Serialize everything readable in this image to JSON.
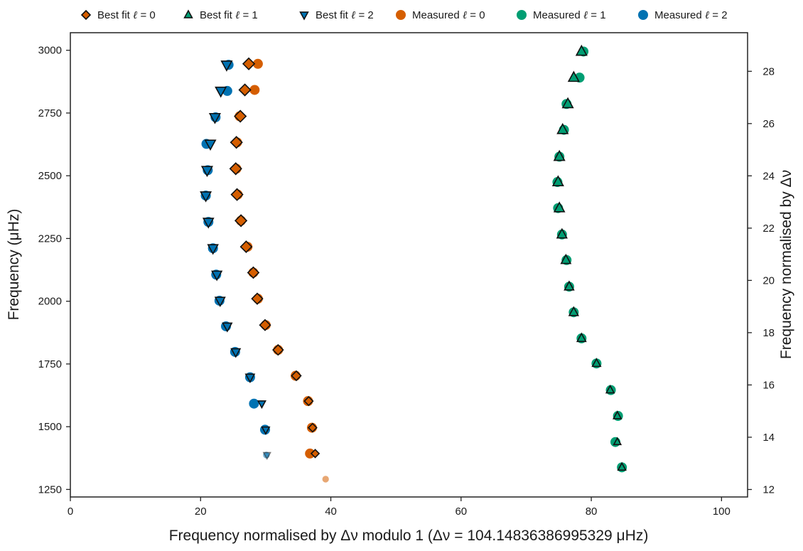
{
  "chart_data": {
    "type": "scatter",
    "xlabel": "Frequency normalised by Δν modulo 1 (Δν = 104.14836386995329 μHz)",
    "ylabel": "Frequency (μHz)",
    "ylabel_right": "Frequency normalised by Δν",
    "xlim": [
      0,
      104
    ],
    "ylim": [
      1220,
      3070
    ],
    "ylim_right": [
      11.714,
      29.477
    ],
    "x_ticks": [
      "0",
      "20",
      "40",
      "60",
      "80",
      "100"
    ],
    "y_ticks": [
      "1250",
      "1500",
      "1750",
      "2000",
      "2250",
      "2500",
      "2750",
      "3000"
    ],
    "y_right_ticks": [
      "12",
      "14",
      "16",
      "18",
      "20",
      "22",
      "24",
      "26",
      "28"
    ],
    "grid": false,
    "legend_position": "top",
    "legend": [
      {
        "prefix": "Best fit ",
        "sym": "ℓ",
        "suffix": " = 0",
        "marker": "diamond",
        "color": "#d55e00"
      },
      {
        "prefix": "Best fit ",
        "sym": "ℓ",
        "suffix": " = 1",
        "marker": "triangle-up",
        "color": "#009e73"
      },
      {
        "prefix": "Best fit ",
        "sym": "ℓ",
        "suffix": " = 2",
        "marker": "triangle-down",
        "color": "#0072b2"
      },
      {
        "prefix": "Measured ",
        "sym": "ℓ",
        "suffix": " = 0",
        "marker": "circle",
        "color": "#d55e00"
      },
      {
        "prefix": "Measured ",
        "sym": "ℓ",
        "suffix": " = 1",
        "marker": "circle",
        "color": "#009e73"
      },
      {
        "prefix": "Measured ",
        "sym": "ℓ",
        "suffix": " = 2",
        "marker": "circle",
        "color": "#0072b2"
      }
    ],
    "series": [
      {
        "name": "Measured ℓ = 0",
        "marker": "circle",
        "color": "#d55e00",
        "points": [
          [
            39.2,
            1291,
            0.15
          ],
          [
            36.8,
            1393,
            1
          ],
          [
            37.1,
            1496,
            1
          ],
          [
            36.5,
            1602,
            1
          ],
          [
            34.6,
            1703,
            1
          ],
          [
            31.9,
            1806,
            1
          ],
          [
            30.0,
            1905,
            1
          ],
          [
            28.8,
            2010,
            1
          ],
          [
            28.1,
            2114,
            1
          ],
          [
            27.2,
            2217,
            1
          ],
          [
            26.2,
            2321,
            1
          ],
          [
            25.7,
            2425,
            1
          ],
          [
            25.5,
            2528,
            1
          ],
          [
            25.6,
            2633,
            1
          ],
          [
            26.0,
            2737,
            1
          ],
          [
            28.3,
            2842,
            1
          ],
          [
            28.8,
            2946,
            1
          ]
        ]
      },
      {
        "name": "Measured ℓ = 1",
        "marker": "circle",
        "color": "#009e73",
        "points": [
          [
            84.7,
            1338,
            1
          ],
          [
            83.7,
            1439,
            1
          ],
          [
            84.1,
            1543,
            1
          ],
          [
            83.0,
            1646,
            1
          ],
          [
            80.8,
            1752,
            1
          ],
          [
            78.5,
            1852,
            1
          ],
          [
            77.3,
            1956,
            1
          ],
          [
            76.6,
            2058,
            1
          ],
          [
            76.2,
            2164,
            1
          ],
          [
            75.5,
            2266,
            1
          ],
          [
            74.9,
            2371,
            1
          ],
          [
            74.8,
            2475,
            1
          ],
          [
            75.1,
            2576,
            1
          ],
          [
            75.8,
            2683,
            1
          ],
          [
            76.2,
            2786,
            1
          ],
          [
            78.2,
            2891,
            1
          ],
          [
            78.8,
            2995,
            1
          ]
        ]
      },
      {
        "name": "Measured ℓ = 2",
        "marker": "circle",
        "color": "#0072b2",
        "points": [
          [
            30.1,
            1387,
            0.15
          ],
          [
            29.9,
            1488,
            1
          ],
          [
            28.2,
            1592,
            1
          ],
          [
            27.6,
            1697,
            1
          ],
          [
            25.3,
            1798,
            1
          ],
          [
            23.9,
            1900,
            1
          ],
          [
            22.9,
            2002,
            1
          ],
          [
            22.4,
            2106,
            1
          ],
          [
            21.9,
            2211,
            1
          ],
          [
            21.2,
            2316,
            1
          ],
          [
            20.8,
            2421,
            1
          ],
          [
            21.1,
            2522,
            1
          ],
          [
            20.9,
            2627,
            1
          ],
          [
            22.3,
            2733,
            1
          ],
          [
            24.1,
            2838,
            1
          ],
          [
            24.3,
            2942,
            1
          ]
        ]
      },
      {
        "name": "Best fit ℓ = 0",
        "marker": "diamond",
        "color": "#d55e00",
        "points": [
          [
            37.6,
            1393,
            0.2
          ],
          [
            37.2,
            1496,
            0.25
          ],
          [
            36.6,
            1602,
            0.3
          ],
          [
            34.7,
            1703,
            0.45
          ],
          [
            31.9,
            1806,
            0.65
          ],
          [
            29.9,
            1905,
            0.75
          ],
          [
            28.7,
            2010,
            0.8
          ],
          [
            28.1,
            2114,
            0.85
          ],
          [
            27.0,
            2217,
            0.9
          ],
          [
            26.2,
            2321,
            1
          ],
          [
            25.6,
            2425,
            1
          ],
          [
            25.4,
            2528,
            1
          ],
          [
            25.5,
            2633,
            1
          ],
          [
            26.1,
            2737,
            1
          ],
          [
            26.8,
            2842,
            1
          ],
          [
            27.4,
            2946,
            1
          ]
        ]
      },
      {
        "name": "Best fit ℓ = 1",
        "marker": "triangle-up",
        "color": "#009e73",
        "points": [
          [
            84.7,
            1338,
            0.3
          ],
          [
            84.0,
            1439,
            0.2
          ],
          [
            84.0,
            1543,
            0.3
          ],
          [
            82.9,
            1646,
            0.3
          ],
          [
            80.8,
            1752,
            0.4
          ],
          [
            78.5,
            1852,
            0.5
          ],
          [
            77.3,
            1956,
            0.6
          ],
          [
            76.6,
            2058,
            0.65
          ],
          [
            76.1,
            2164,
            0.7
          ],
          [
            75.5,
            2266,
            0.8
          ],
          [
            75.1,
            2371,
            0.9
          ],
          [
            74.9,
            2475,
            1
          ],
          [
            75.1,
            2576,
            1
          ],
          [
            75.6,
            2683,
            1
          ],
          [
            76.4,
            2786,
            1
          ],
          [
            77.3,
            2891,
            1
          ],
          [
            78.5,
            2995,
            1
          ]
        ]
      },
      {
        "name": "Best fit ℓ = 2",
        "marker": "triangle-down",
        "color": "#0072b2",
        "points": [
          [
            30.2,
            1387,
            0.15
          ],
          [
            30.0,
            1488,
            0.25
          ],
          [
            29.4,
            1592,
            0.25
          ],
          [
            27.6,
            1697,
            0.5
          ],
          [
            25.4,
            1798,
            0.55
          ],
          [
            24.1,
            1900,
            0.6
          ],
          [
            23.0,
            2002,
            0.75
          ],
          [
            22.5,
            2106,
            0.8
          ],
          [
            21.9,
            2211,
            0.85
          ],
          [
            21.2,
            2316,
            0.9
          ],
          [
            20.8,
            2421,
            0.95
          ],
          [
            21.0,
            2522,
            1
          ],
          [
            21.5,
            2627,
            1
          ],
          [
            22.2,
            2733,
            1
          ],
          [
            23.1,
            2838,
            1
          ],
          [
            24.0,
            2942,
            1
          ]
        ]
      }
    ]
  }
}
